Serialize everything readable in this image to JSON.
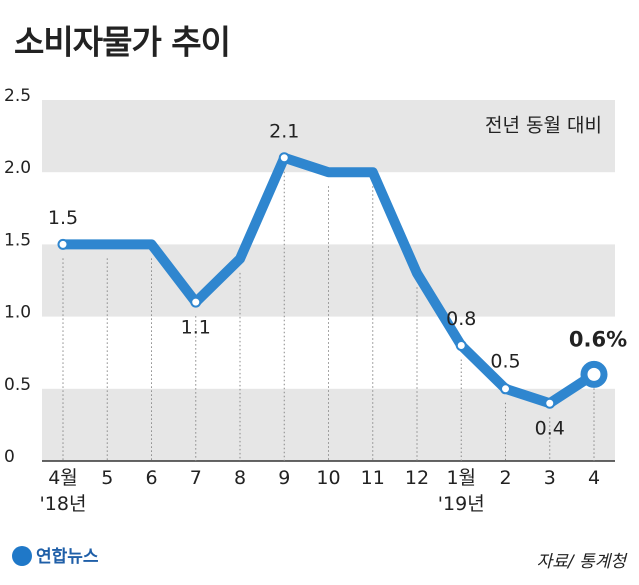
{
  "chart_data": {
    "type": "line",
    "title": "소비자물가 추이",
    "subtitle": "전년 동월 대비",
    "categories": [
      "4월\n'18년",
      "5",
      "6",
      "7",
      "8",
      "9",
      "10",
      "11",
      "12",
      "1월\n'19년",
      "2",
      "3",
      "4"
    ],
    "values": [
      1.5,
      1.5,
      1.5,
      1.1,
      1.4,
      2.1,
      2.0,
      2.0,
      1.3,
      0.8,
      0.5,
      0.4,
      0.6
    ],
    "value_labels": [
      "1.5",
      null,
      null,
      "1.1",
      null,
      "2.1",
      null,
      null,
      null,
      "0.8",
      "0.5",
      "0.4",
      "0.6%"
    ],
    "color": "#2f86cf",
    "ylim": [
      0,
      2.5
    ],
    "yticks": [
      0,
      0.5,
      {
        "value": 1,
        "label": "1.0"
      },
      1.5,
      {
        "value": 2,
        "label": "2.0"
      },
      2.5
    ],
    "grid": "bands",
    "source": "자료/ 통계청",
    "logo": "연합뉴스"
  }
}
